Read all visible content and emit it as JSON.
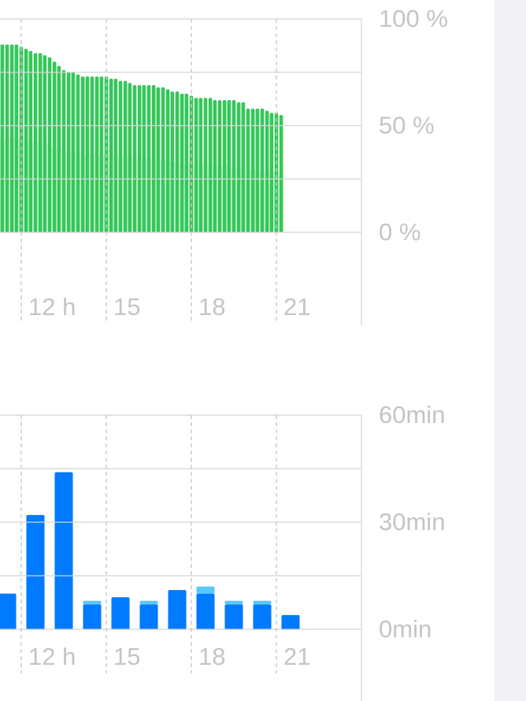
{
  "chart_data": [
    {
      "type": "bar",
      "color": "#34c759",
      "x": [
        11.33,
        11.5,
        11.67,
        11.83,
        12,
        12.17,
        12.33,
        12.5,
        12.67,
        12.83,
        13,
        13.17,
        13.33,
        13.5,
        13.67,
        13.83,
        14,
        14.17,
        14.33,
        14.5,
        14.67,
        14.83,
        15,
        15.17,
        15.33,
        15.5,
        15.67,
        15.83,
        16,
        16.17,
        16.33,
        16.5,
        16.67,
        16.83,
        17,
        17.17,
        17.33,
        17.5,
        17.67,
        17.83,
        18,
        18.17,
        18.33,
        18.5,
        18.67,
        18.83,
        19,
        19.17,
        19.33,
        19.5,
        19.67,
        19.83,
        20,
        20.17,
        20.33,
        20.5,
        20.67,
        20.83,
        21,
        21.17
      ],
      "values": [
        88,
        88,
        88,
        88,
        87,
        86,
        85,
        84,
        84,
        83,
        82,
        80,
        78,
        76,
        75,
        75,
        74,
        73,
        73,
        73,
        73,
        73,
        73,
        72,
        72,
        71,
        71,
        70,
        69,
        69,
        69,
        69,
        69,
        68,
        68,
        67,
        66,
        66,
        65,
        65,
        64,
        63,
        63,
        63,
        63,
        62,
        62,
        62,
        62,
        62,
        61,
        61,
        58,
        58,
        58,
        58,
        57,
        56,
        56,
        55
      ],
      "xlim": [
        11.25,
        24
      ],
      "xticks": [
        {
          "value": 12,
          "label": "12 h"
        },
        15,
        18,
        21
      ],
      "ylim": [
        0,
        100
      ],
      "yticks": [
        {
          "value": 0,
          "label": "0 %"
        },
        {
          "value": 50,
          "label": "50 %"
        },
        {
          "value": 100,
          "label": "100 %"
        }
      ],
      "grid": true
    },
    {
      "type": "stacked_bar",
      "x": [
        11,
        12,
        13,
        14,
        15,
        16,
        17,
        18,
        19,
        20,
        21
      ],
      "series": [
        {
          "color": "#007aff",
          "values": [
            10,
            32,
            44,
            7,
            9,
            7,
            11,
            10,
            7,
            7,
            4
          ]
        },
        {
          "color": "#5ac8fa",
          "values": [
            0,
            0,
            0,
            1,
            0,
            1,
            0,
            2,
            1,
            1,
            0
          ]
        }
      ],
      "xlim": [
        11.25,
        24
      ],
      "xticks": [
        {
          "value": 12,
          "label": "12 h"
        },
        15,
        18,
        21
      ],
      "ylim": [
        0,
        60
      ],
      "yticks": [
        {
          "value": 0,
          "label": "0min"
        },
        {
          "value": 30,
          "label": "30min"
        },
        {
          "value": 60,
          "label": "60min"
        }
      ],
      "grid": true
    }
  ]
}
